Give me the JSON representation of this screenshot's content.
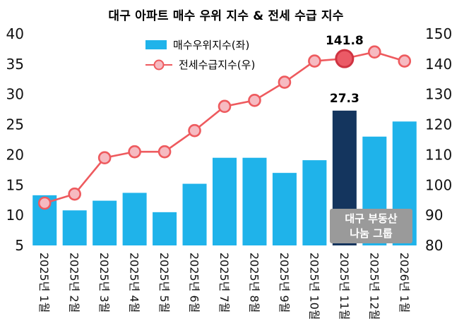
{
  "chart_data": {
    "type": "combo-bar-line",
    "title": "대구 아파트 매수 우위 지수 & 전세 수급 지수",
    "categories": [
      "2025년 1월",
      "2025년 2월",
      "2025년 3월",
      "2025년 4월",
      "2025년 5월",
      "2025년 6월",
      "2025년 7월",
      "2025년 8월",
      "2025년 9월",
      "2025년 10월",
      "2025년 11월",
      "2025년 12월",
      "2026년 1월"
    ],
    "series": [
      {
        "name": "매수우위지수(좌)",
        "type": "bar",
        "axis": "left",
        "color": "#1fb3ea",
        "highlight_index": 10,
        "highlight_color": "#14355e",
        "values": [
          13.3,
          10.8,
          12.4,
          13.7,
          10.5,
          15.2,
          19.5,
          19.5,
          17.0,
          19.1,
          27.3,
          23.0,
          25.5
        ]
      },
      {
        "name": "전세수급지수(우)",
        "type": "line",
        "axis": "right",
        "color": "#ee5a5e",
        "marker_fill": "#f6bac1",
        "emphasis_index": 10,
        "emphasis_fill": "#eb5a66",
        "emphasis_stroke": "#cf3341",
        "values": [
          94,
          97,
          109,
          111,
          111,
          118,
          126,
          128,
          134,
          141,
          141.8,
          144,
          141
        ]
      }
    ],
    "left_axis": {
      "min": 5,
      "max": 40,
      "ticks": [
        5,
        10,
        15,
        20,
        25,
        30,
        35,
        40
      ]
    },
    "right_axis": {
      "min": 80,
      "max": 150,
      "ticks": [
        80,
        90,
        100,
        110,
        120,
        130,
        140,
        150
      ]
    },
    "annotations": [
      {
        "text": "141.8",
        "target": "line",
        "index": 10
      },
      {
        "text": "27.3",
        "target": "bar",
        "index": 10
      }
    ],
    "legend_position": "top-center",
    "grid": false
  },
  "watermark": {
    "line1": "대구 부동산",
    "line2": "나눔 그룹",
    "bg": "#9a9a9a",
    "text_color": "#ffffff"
  }
}
